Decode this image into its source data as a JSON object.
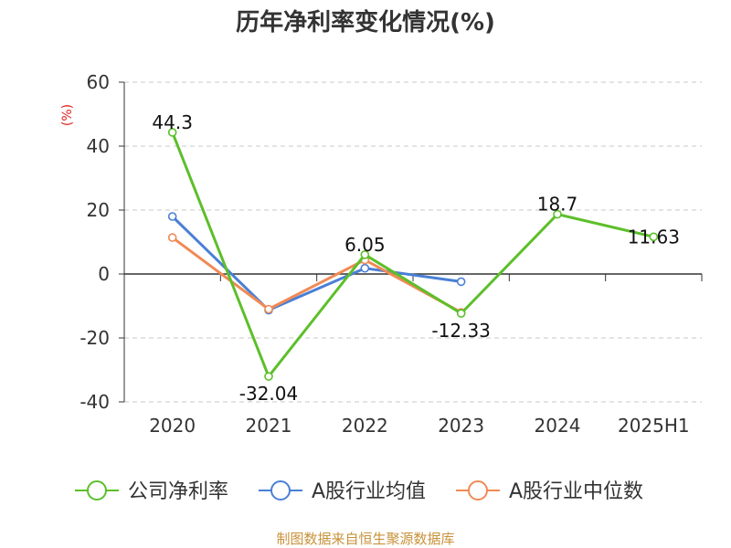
{
  "chart_data": {
    "type": "line",
    "title": "历年净利率变化情况(%)",
    "ylabel": "(%)",
    "xlabel": "",
    "categories": [
      "2020",
      "2021",
      "2022",
      "2023",
      "2024",
      "2025H1"
    ],
    "ylim": [
      -40,
      60
    ],
    "yticks": [
      60,
      40,
      20,
      0,
      -20,
      -40
    ],
    "grid": "horizontal-dashed",
    "legend_position": "bottom",
    "series": [
      {
        "name": "公司净利率",
        "color": "#5cbf2a",
        "values": [
          44.3,
          -32.04,
          6.05,
          -12.33,
          18.7,
          11.63
        ],
        "labels": [
          "44.3",
          "-32.04",
          "6.05",
          "-12.33",
          "18.7",
          "11.63"
        ]
      },
      {
        "name": "A股行业均值",
        "color": "#4a7fd6",
        "values": [
          18.0,
          -11.3,
          1.8,
          -2.4,
          null,
          null
        ]
      },
      {
        "name": "A股行业中位数",
        "color": "#f08a55",
        "values": [
          11.4,
          -11.0,
          4.4,
          -12.0,
          null,
          null
        ]
      }
    ],
    "source": "制图数据来自恒生聚源数据库"
  }
}
